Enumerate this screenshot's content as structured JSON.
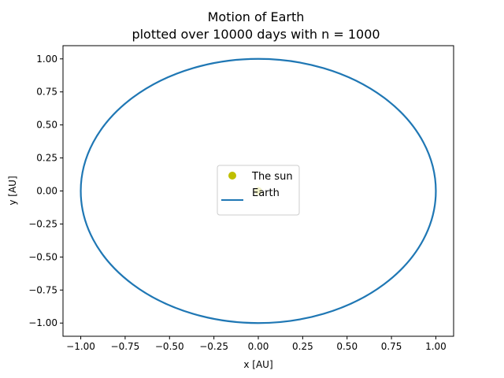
{
  "chart_data": {
    "type": "line",
    "title": "Motion of Earth",
    "subtitle": "plotted over 10000 days with n = 1000",
    "xlabel": "x [AU]",
    "ylabel": "y [AU]",
    "xlim": [
      -1.1,
      1.1
    ],
    "ylim": [
      -1.1,
      1.1
    ],
    "xticks": [
      -1.0,
      -0.75,
      -0.5,
      -0.25,
      0.0,
      0.25,
      0.5,
      0.75,
      1.0
    ],
    "xtick_labels": [
      "−1.00",
      "−0.75",
      "−0.50",
      "−0.25",
      "0.00",
      "0.25",
      "0.50",
      "0.75",
      "1.00"
    ],
    "yticks": [
      -1.0,
      -0.75,
      -0.5,
      -0.25,
      0.0,
      0.25,
      0.5,
      0.75,
      1.0
    ],
    "ytick_labels": [
      "−1.00",
      "−0.75",
      "−0.50",
      "−0.25",
      "0.00",
      "0.25",
      "0.50",
      "0.75",
      "1.00"
    ],
    "grid": false,
    "legend_position": "center",
    "series": [
      {
        "name": "The sun",
        "kind": "point",
        "color": "#bfbf00",
        "x": [
          0.0
        ],
        "y": [
          0.0
        ]
      },
      {
        "name": "Earth",
        "kind": "orbit",
        "color": "#1f77b4",
        "center": [
          0.0,
          0.0
        ],
        "radius_x": 1.0,
        "radius_y": 1.0
      }
    ]
  }
}
